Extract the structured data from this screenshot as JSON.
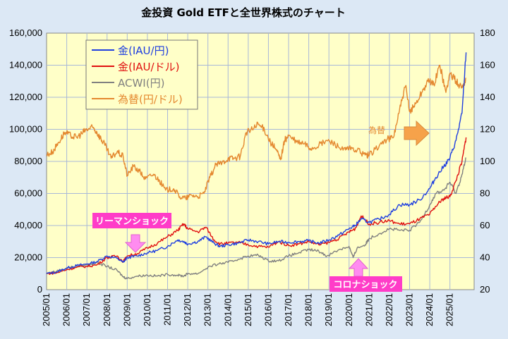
{
  "chart_data": {
    "type": "line",
    "title": "金投資 Gold ETFと全世界株式のチャート",
    "y_left": {
      "min": 0,
      "max": 160000,
      "ticks": [
        "0",
        "20,000",
        "40,000",
        "60,000",
        "80,000",
        "100,000",
        "120,000",
        "140,000",
        "160,000"
      ]
    },
    "y_right": {
      "min": 20,
      "max": 180,
      "ticks": [
        "20",
        "40",
        "60",
        "80",
        "100",
        "120",
        "140",
        "160",
        "180"
      ]
    },
    "x_range": [
      2005.0,
      2026.2
    ],
    "x_ticks": [
      "2005/01",
      "2006/01",
      "2007/01",
      "2008/01",
      "2009/01",
      "2010/01",
      "2011/01",
      "2012/01",
      "2013/01",
      "2014/01",
      "2015/01",
      "2016/01",
      "2017/01",
      "2018/01",
      "2019/01",
      "2020/01",
      "2021/01",
      "2022/01",
      "2023/01",
      "2024/01",
      "2025/01"
    ],
    "x_tick_values": [
      2005,
      2006,
      2007,
      2008,
      2009,
      2010,
      2011,
      2012,
      2013,
      2014,
      2015,
      2016,
      2017,
      2018,
      2019,
      2020,
      2021,
      2022,
      2023,
      2024,
      2025
    ],
    "series": [
      {
        "name": "金(IAU/円)",
        "color": "#1f3fe0",
        "axis": "left",
        "x": [
          2005.0,
          2005.5,
          2006.0,
          2006.5,
          2007.0,
          2007.5,
          2008.0,
          2008.5,
          2008.8,
          2009.0,
          2009.5,
          2010.0,
          2010.5,
          2011.0,
          2011.5,
          2011.8,
          2012.0,
          2012.5,
          2012.9,
          2013.3,
          2013.6,
          2014.0,
          2014.5,
          2015.0,
          2015.5,
          2016.0,
          2016.5,
          2017.0,
          2017.5,
          2018.0,
          2018.5,
          2019.0,
          2019.5,
          2020.0,
          2020.3,
          2020.6,
          2021.0,
          2021.5,
          2022.0,
          2022.5,
          2023.0,
          2023.5,
          2024.0,
          2024.3,
          2024.7,
          2025.0,
          2025.3,
          2025.6,
          2025.8
        ],
        "y": [
          10000,
          11000,
          13500,
          15000,
          16000,
          17500,
          21000,
          19500,
          17000,
          20000,
          21000,
          23000,
          24500,
          27000,
          31000,
          30000,
          28500,
          30000,
          33000,
          29000,
          27000,
          28000,
          29000,
          31000,
          30000,
          28500,
          30000,
          29500,
          30000,
          30500,
          29000,
          31000,
          34000,
          38000,
          40000,
          44000,
          42000,
          44000,
          47000,
          53000,
          53000,
          56000,
          63000,
          70000,
          77000,
          82000,
          93000,
          110000,
          148000
        ]
      },
      {
        "name": "金(IAU/ドル)",
        "color": "#e01010",
        "axis": "left",
        "x": [
          2005.0,
          2005.5,
          2006.0,
          2006.5,
          2007.0,
          2007.5,
          2008.0,
          2008.5,
          2008.8,
          2009.0,
          2009.5,
          2010.0,
          2010.5,
          2011.0,
          2011.5,
          2011.8,
          2012.0,
          2012.5,
          2012.9,
          2013.3,
          2013.6,
          2014.0,
          2014.5,
          2015.0,
          2015.5,
          2016.0,
          2016.5,
          2017.0,
          2017.5,
          2018.0,
          2018.5,
          2019.0,
          2019.5,
          2020.0,
          2020.3,
          2020.6,
          2021.0,
          2021.5,
          2022.0,
          2022.5,
          2023.0,
          2023.5,
          2024.0,
          2024.3,
          2024.7,
          2025.0,
          2025.3,
          2025.6,
          2025.8
        ],
        "y": [
          10000,
          10500,
          12500,
          14000,
          14500,
          15500,
          20000,
          21000,
          17500,
          21000,
          22500,
          26000,
          29000,
          33000,
          37000,
          41000,
          38000,
          36000,
          39000,
          31000,
          28500,
          29000,
          29500,
          28000,
          27000,
          26500,
          30000,
          27500,
          28500,
          30000,
          28000,
          29500,
          32000,
          36000,
          38000,
          46000,
          41000,
          42000,
          43000,
          41000,
          41000,
          44000,
          47000,
          52000,
          57000,
          58000,
          68000,
          80000,
          95000
        ]
      },
      {
        "name": "ACWI(円)",
        "color": "#808080",
        "axis": "left",
        "x": [
          2005.0,
          2005.5,
          2006.0,
          2006.5,
          2007.0,
          2007.5,
          2008.0,
          2008.5,
          2008.8,
          2009.0,
          2009.5,
          2010.0,
          2010.5,
          2011.0,
          2011.5,
          2011.8,
          2012.0,
          2012.5,
          2013.0,
          2013.5,
          2014.0,
          2014.5,
          2015.0,
          2015.5,
          2016.0,
          2016.5,
          2017.0,
          2017.5,
          2018.0,
          2018.5,
          2018.9,
          2019.5,
          2020.0,
          2020.2,
          2020.4,
          2020.8,
          2021.0,
          2021.5,
          2022.0,
          2022.5,
          2023.0,
          2023.5,
          2024.0,
          2024.3,
          2024.7,
          2025.0,
          2025.3,
          2025.6,
          2025.8
        ],
        "y": [
          10000,
          11500,
          13500,
          14500,
          15500,
          17000,
          14500,
          12000,
          8000,
          7000,
          8500,
          9000,
          8500,
          9500,
          9000,
          8500,
          10000,
          10000,
          14000,
          16000,
          17000,
          19000,
          21000,
          21500,
          18000,
          18000,
          21000,
          23000,
          25000,
          24000,
          21000,
          25000,
          27000,
          20000,
          26000,
          28000,
          32000,
          35000,
          38000,
          37000,
          37000,
          42000,
          53000,
          60000,
          62000,
          67000,
          60000,
          72000,
          82000
        ]
      },
      {
        "name": "為替(円/ドル)",
        "color": "#e4882f",
        "axis": "right",
        "x": [
          2005.0,
          2005.3,
          2005.6,
          2005.9,
          2006.2,
          2006.5,
          2006.8,
          2007.0,
          2007.3,
          2007.5,
          2007.7,
          2007.9,
          2008.2,
          2008.5,
          2008.8,
          2009.0,
          2009.3,
          2009.6,
          2009.9,
          2010.3,
          2010.6,
          2010.9,
          2011.3,
          2011.6,
          2011.9,
          2012.2,
          2012.5,
          2012.8,
          2013.1,
          2013.4,
          2013.7,
          2014.0,
          2014.3,
          2014.6,
          2014.9,
          2015.2,
          2015.5,
          2015.8,
          2016.1,
          2016.4,
          2016.6,
          2016.8,
          2017.0,
          2017.4,
          2017.8,
          2018.1,
          2018.5,
          2018.9,
          2019.3,
          2019.7,
          2020.0,
          2020.4,
          2020.8,
          2021.0,
          2021.5,
          2021.9,
          2022.2,
          2022.5,
          2022.8,
          2023.0,
          2023.3,
          2023.6,
          2023.9,
          2024.2,
          2024.5,
          2024.8,
          2025.0,
          2025.3,
          2025.6,
          2025.8
        ],
        "y": [
          104,
          106,
          112,
          118,
          116,
          115,
          118,
          120,
          121,
          118,
          114,
          110,
          102,
          106,
          103,
          91,
          97,
          94,
          89,
          92,
          88,
          82,
          83,
          78,
          77,
          79,
          78,
          80,
          90,
          98,
          99,
          102,
          102,
          103,
          118,
          120,
          123,
          120,
          112,
          107,
          101,
          113,
          116,
          112,
          111,
          108,
          110,
          113,
          111,
          107,
          108,
          107,
          104,
          104,
          110,
          114,
          115,
          132,
          147,
          131,
          136,
          143,
          150,
          148,
          160,
          143,
          155,
          150,
          146,
          152
        ]
      }
    ],
    "legend": [
      "金(IAU/円)",
      "金(IAU/ドル)",
      "ACWI(円)",
      "為替(円/ドル)"
    ],
    "legend_position": "top-left",
    "annotations": [
      {
        "text": "リーマンショック",
        "arrow": "down"
      },
      {
        "text": "コロナショック",
        "arrow": "up"
      },
      {
        "text": "為替",
        "arrow": "right"
      }
    ],
    "grid": true
  }
}
